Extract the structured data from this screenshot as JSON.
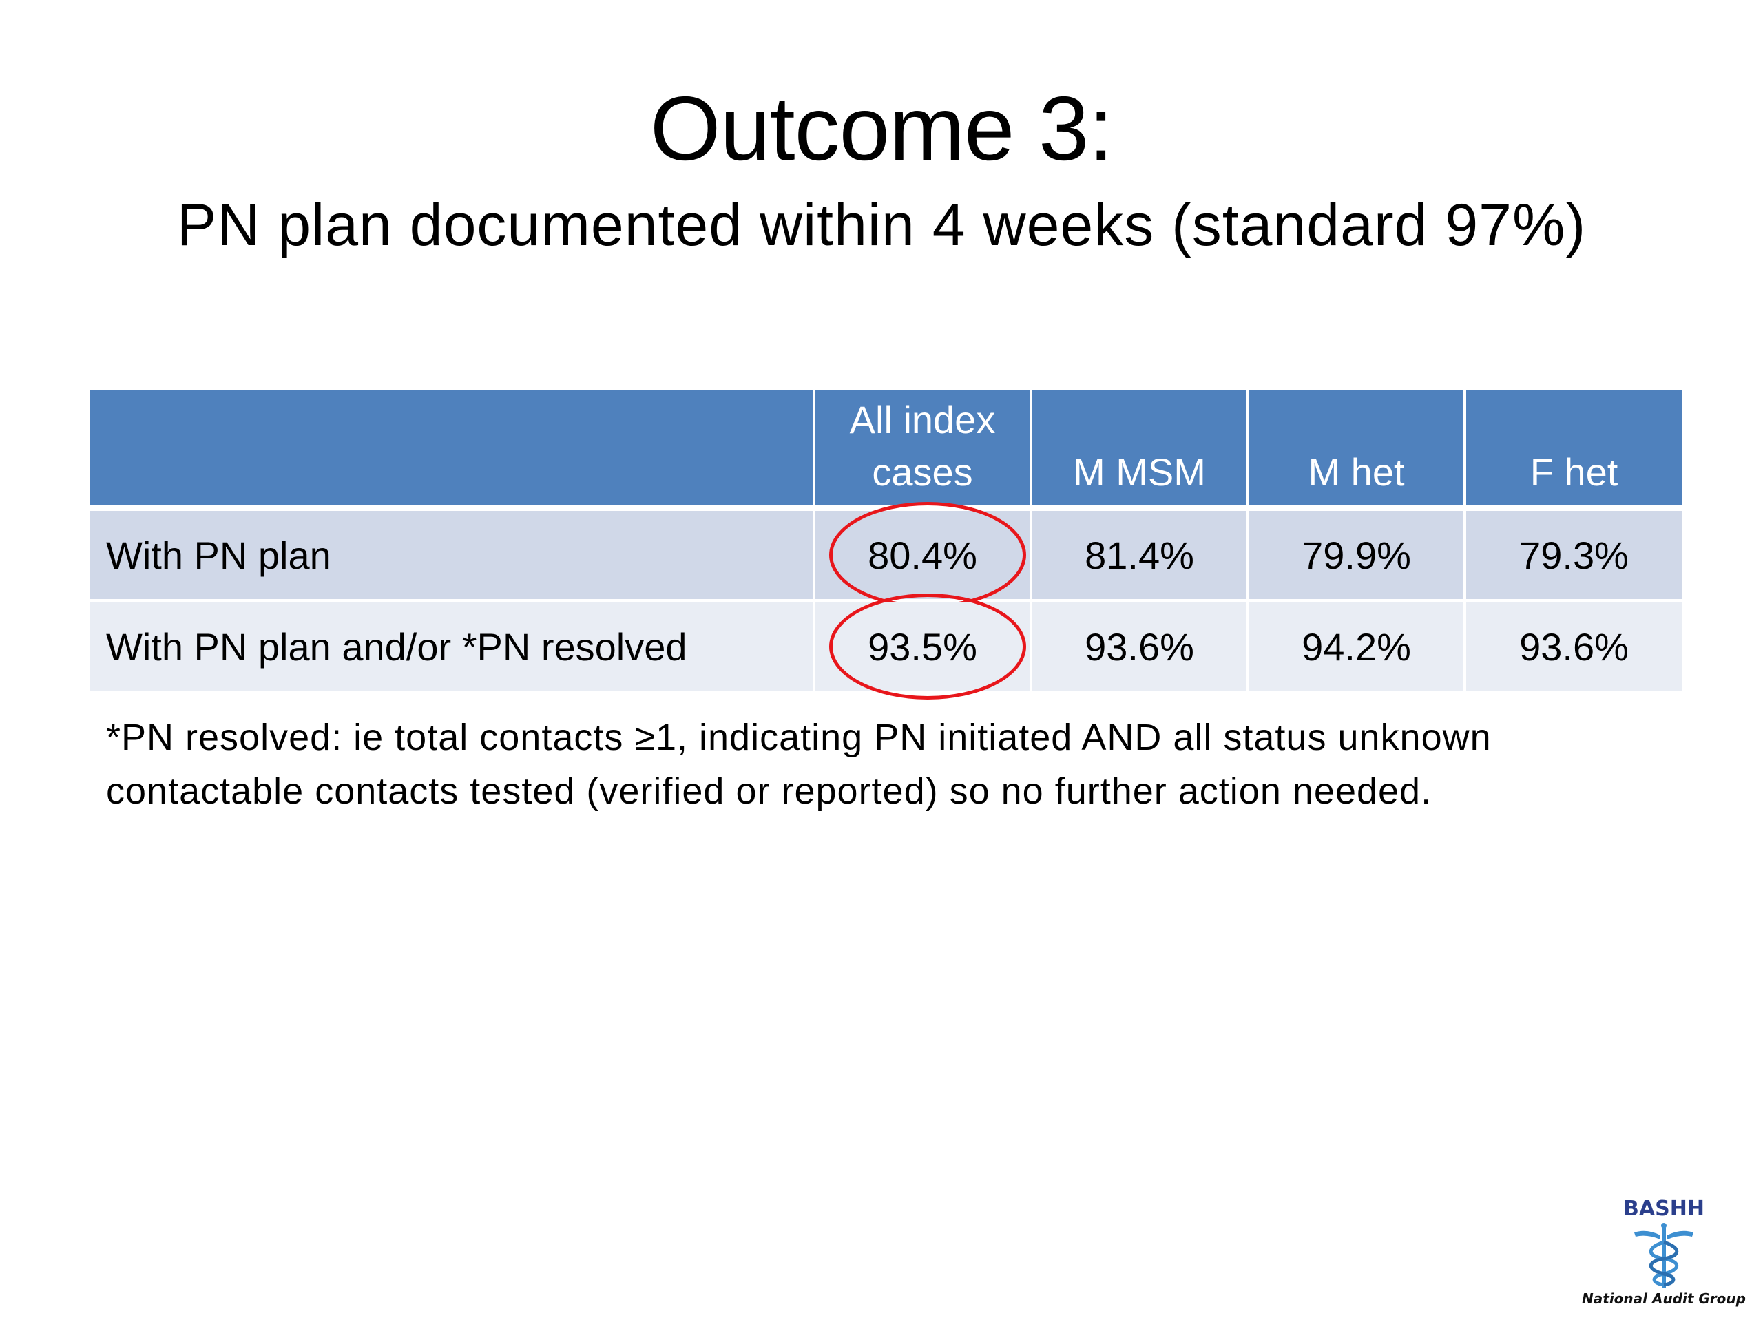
{
  "slide": {
    "title": "Outcome 3:",
    "subtitle": "PN plan documented within 4 weeks (standard 97%)"
  },
  "table": {
    "headers": [
      "",
      "All index cases",
      "M MSM",
      "M het",
      "F het"
    ],
    "rows": [
      {
        "label": "With PN plan",
        "values": [
          "80.4%",
          "81.4%",
          "79.9%",
          "79.3%"
        ]
      },
      {
        "label": "With PN plan and/or *PN resolved",
        "values": [
          "93.5%",
          "93.6%",
          "94.2%",
          "93.6%"
        ]
      }
    ],
    "header_color": "#4f81bd",
    "row_colors": [
      "#d0d8e8",
      "#e9edf4"
    ],
    "highlight_color": "#e8161b"
  },
  "footnote": {
    "line1": "*PN resolved: ie total contacts ≥1, indicating PN initiated AND all status unknown",
    "line2": "contactable contacts tested (verified or reported) so no further action needed."
  },
  "logo": {
    "name": "BASHH",
    "caption": "National Audit Group",
    "icon": "caduceus-icon"
  }
}
